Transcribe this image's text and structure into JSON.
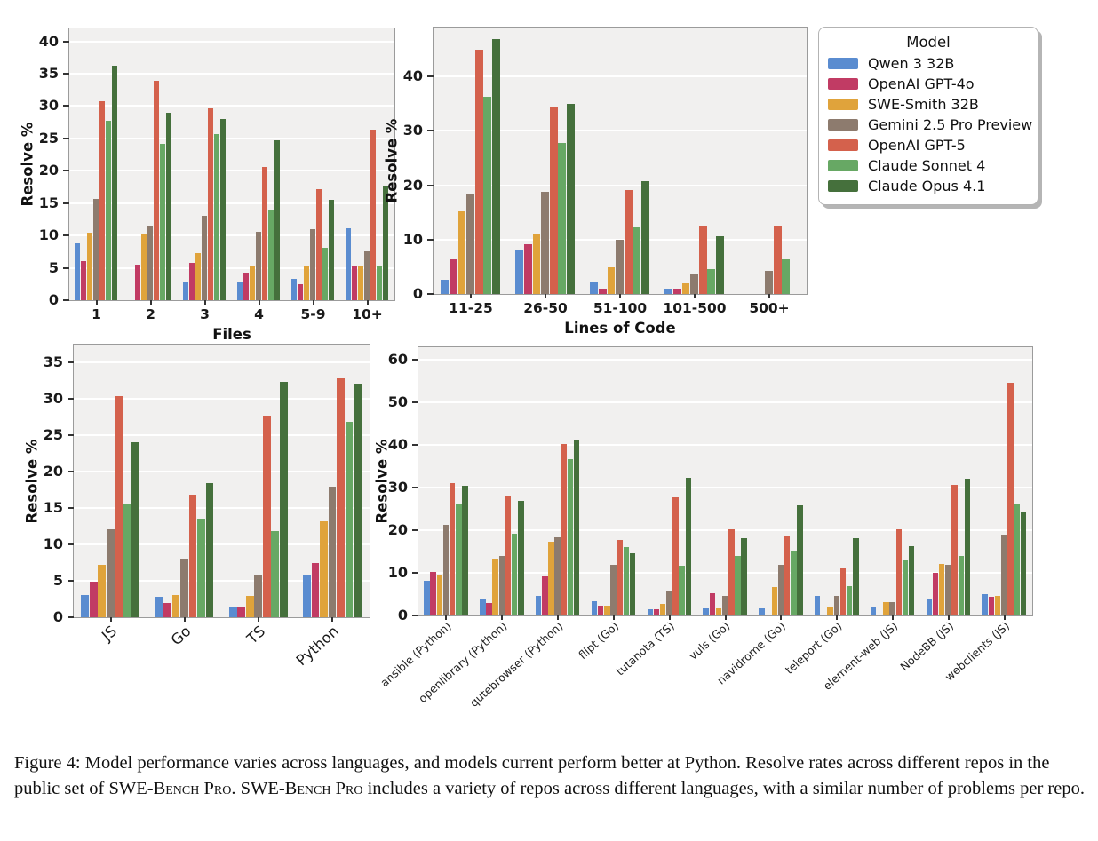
{
  "legend": {
    "title": "Model",
    "position": "top-right",
    "items": [
      {
        "label": "Qwen 3 32B",
        "color": "#5A8CD0"
      },
      {
        "label": "OpenAI GPT-4o",
        "color": "#C13B64"
      },
      {
        "label": "SWE-Smith 32B",
        "color": "#E0A33B"
      },
      {
        "label": "Gemini 2.5 Pro Preview",
        "color": "#8D7B6E"
      },
      {
        "label": "OpenAI GPT-5",
        "color": "#D4614C"
      },
      {
        "label": "Claude Sonnet 4",
        "color": "#67A864"
      },
      {
        "label": "Claude Opus 4.1",
        "color": "#45703C"
      }
    ]
  },
  "chart_data": [
    {
      "type": "bar",
      "xlabel": "Files",
      "ylabel": "Resolve %",
      "ylim": [
        0,
        42
      ],
      "yticks": [
        0,
        5,
        10,
        15,
        20,
        25,
        30,
        35,
        40
      ],
      "grid": true,
      "rotated_xticks": false,
      "categories": [
        "1",
        "2",
        "3",
        "4",
        "5-9",
        "10+"
      ],
      "series": [
        {
          "name": "Qwen 3 32B",
          "values": [
            8.8,
            0,
            2.8,
            2.9,
            3.3,
            11.1
          ]
        },
        {
          "name": "OpenAI GPT-4o",
          "values": [
            6.1,
            5.5,
            5.7,
            4.2,
            2.5,
            5.3
          ]
        },
        {
          "name": "SWE-Smith 32B",
          "values": [
            10.5,
            10.1,
            7.3,
            5.4,
            5.2,
            5.3
          ]
        },
        {
          "name": "Gemini 2.5 Pro Preview",
          "values": [
            15.7,
            11.6,
            13.0,
            10.6,
            11.0,
            7.6
          ]
        },
        {
          "name": "OpenAI GPT-5",
          "values": [
            30.8,
            33.9,
            29.7,
            20.6,
            17.2,
            26.3
          ]
        },
        {
          "name": "Claude Sonnet 4",
          "values": [
            27.7,
            24.2,
            25.7,
            13.8,
            8.1,
            5.4
          ]
        },
        {
          "name": "Claude Opus 4.1",
          "values": [
            36.2,
            29.0,
            28.0,
            24.7,
            15.5,
            17.6
          ]
        }
      ]
    },
    {
      "type": "bar",
      "xlabel": "Lines of Code",
      "ylabel": "Resolve %",
      "ylim": [
        0,
        49
      ],
      "yticks": [
        0,
        10,
        20,
        30,
        40
      ],
      "grid": true,
      "rotated_xticks": false,
      "categories": [
        "11-25",
        "26-50",
        "51-100",
        "101-500",
        "500+"
      ],
      "series": [
        {
          "name": "Qwen 3 32B",
          "values": [
            2.6,
            8.1,
            2.2,
            1.0,
            0
          ]
        },
        {
          "name": "OpenAI GPT-4o",
          "values": [
            6.3,
            9.2,
            1.0,
            1.0,
            0
          ]
        },
        {
          "name": "SWE-Smith 32B",
          "values": [
            15.2,
            11.0,
            4.9,
            2.0,
            0
          ]
        },
        {
          "name": "Gemini 2.5 Pro Preview",
          "values": [
            18.5,
            18.8,
            10.0,
            3.6,
            4.2
          ]
        },
        {
          "name": "OpenAI GPT-5",
          "values": [
            44.9,
            34.4,
            19.1,
            12.5,
            12.4
          ]
        },
        {
          "name": "Claude Sonnet 4",
          "values": [
            36.3,
            27.8,
            12.3,
            4.6,
            6.3
          ]
        },
        {
          "name": "Claude Opus 4.1",
          "values": [
            46.8,
            34.9,
            20.7,
            10.6,
            0
          ]
        }
      ]
    },
    {
      "type": "bar",
      "xlabel": "",
      "ylabel": "Resolve %",
      "ylim": [
        0,
        37.5
      ],
      "yticks": [
        0,
        5,
        10,
        15,
        20,
        25,
        30,
        35
      ],
      "grid": true,
      "rotated_xticks": true,
      "categories": [
        "JS",
        "Go",
        "TS",
        "Python"
      ],
      "series": [
        {
          "name": "Qwen 3 32B",
          "values": [
            3.1,
            2.8,
            1.5,
            5.7
          ]
        },
        {
          "name": "OpenAI GPT-4o",
          "values": [
            4.9,
            2.0,
            1.5,
            7.4
          ]
        },
        {
          "name": "SWE-Smith 32B",
          "values": [
            7.2,
            3.1,
            2.9,
            13.2
          ]
        },
        {
          "name": "Gemini 2.5 Pro Preview",
          "values": [
            12.1,
            8.1,
            5.8,
            17.9
          ]
        },
        {
          "name": "OpenAI GPT-5",
          "values": [
            30.4,
            16.8,
            27.7,
            32.8
          ]
        },
        {
          "name": "Claude Sonnet 4",
          "values": [
            15.5,
            13.6,
            11.9,
            26.9
          ]
        },
        {
          "name": "Claude Opus 4.1",
          "values": [
            24.1,
            18.4,
            32.4,
            32.1
          ]
        }
      ]
    },
    {
      "type": "bar",
      "xlabel": "",
      "ylabel": "Resolve %",
      "ylim": [
        0,
        63
      ],
      "yticks": [
        0,
        10,
        20,
        30,
        40,
        50,
        60
      ],
      "grid": true,
      "rotated_xticks": true,
      "categories": [
        "ansible (Python)",
        "openlibrary (Python)",
        "qutebrowser (Python)",
        "flipt (Go)",
        "tutanota (TS)",
        "vuls (Go)",
        "navidrome (Go)",
        "teleport (Go)",
        "element-web (JS)",
        "NodeBB (JS)",
        "webclients (JS)"
      ],
      "series": [
        {
          "name": "Qwen 3 32B",
          "values": [
            8.1,
            3.9,
            4.6,
            3.4,
            1.4,
            1.7,
            1.7,
            4.5,
            1.8,
            3.8,
            5.0
          ]
        },
        {
          "name": "OpenAI GPT-4o",
          "values": [
            10.2,
            2.9,
            9.1,
            2.4,
            1.4,
            5.2,
            0,
            0,
            0,
            10.0,
            4.4
          ]
        },
        {
          "name": "SWE-Smith 32B",
          "values": [
            9.5,
            13.2,
            17.4,
            2.3,
            2.8,
            1.7,
            6.6,
            2.1,
            3.2,
            12.2,
            4.5
          ]
        },
        {
          "name": "Gemini 2.5 Pro Preview",
          "values": [
            21.3,
            13.9,
            18.4,
            11.8,
            5.8,
            4.6,
            11.9,
            4.5,
            3.2,
            11.8,
            18.9
          ]
        },
        {
          "name": "OpenAI GPT-5",
          "values": [
            31.0,
            28.0,
            40.2,
            17.7,
            27.7,
            20.2,
            18.6,
            11.0,
            20.3,
            30.6,
            54.6
          ]
        },
        {
          "name": "Claude Sonnet 4",
          "values": [
            26.1,
            19.1,
            36.8,
            16.1,
            11.6,
            14.0,
            15.0,
            6.8,
            12.9,
            13.9,
            26.2
          ]
        },
        {
          "name": "Claude Opus 4.1",
          "values": [
            30.4,
            27.0,
            41.4,
            14.6,
            32.4,
            18.1,
            25.9,
            18.1,
            16.3,
            32.1,
            24.2
          ]
        }
      ]
    }
  ],
  "caption": {
    "part1": "Figure 4: Model performance varies across languages, and models current perform better at Python. Resolve rates across different repos in the public set of ",
    "smallcaps1": "SWE-Bench Pro",
    "part2": ". ",
    "smallcaps2": "SWE-Bench Pro",
    "part3": " includes a variety of repos across different languages, with a similar number of problems per repo."
  }
}
